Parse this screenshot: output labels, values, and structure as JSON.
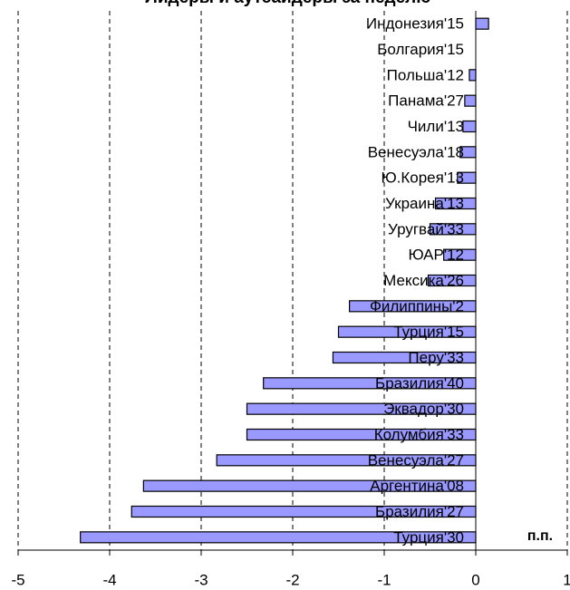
{
  "chart_data": {
    "type": "barh",
    "title": "Лидеры и аутсайдеры за неделю",
    "unit_label": "п.п.",
    "categories": [
      "Индонезия'15",
      "Болгария'15",
      "Польша'12",
      "Панама'27",
      "Чили'13",
      "Венесуэла'18",
      "Ю.Корея'13",
      "Украина'13",
      "Уругвай'33",
      "ЮАР'12",
      "Мексика'26",
      "Филиппины'2",
      "Турция'15",
      "Перу'33",
      "Бразилия'40",
      "Эквадор'30",
      "Колумбия'33",
      "Венесуэла'27",
      "Аргентина'08",
      "Бразилия'27",
      "Турция'30"
    ],
    "values": [
      0.14,
      0,
      -0.07,
      -0.12,
      -0.14,
      -0.17,
      -0.2,
      -0.44,
      -0.5,
      -0.35,
      -0.52,
      -1.38,
      -1.5,
      -1.56,
      -2.32,
      -2.5,
      -2.5,
      -2.83,
      -3.63,
      -3.76,
      -4.32
    ],
    "color": "#9999ff",
    "xlim": [
      -5,
      1
    ],
    "xticks": [
      -5,
      -4,
      -3,
      -2,
      -1,
      0,
      1
    ],
    "grid": true
  }
}
